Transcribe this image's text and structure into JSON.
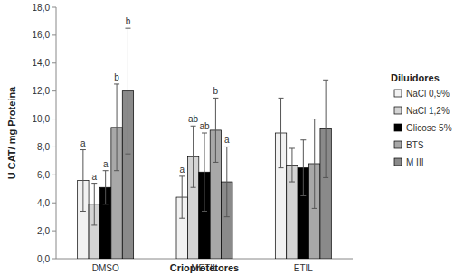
{
  "chart_data": {
    "type": "bar",
    "x_label": "Crioprotetores",
    "y_label": "U CAT/ mg Proteina",
    "legend_title": "Diluidores",
    "legend": "right",
    "grid": false,
    "categories": [
      "DMSO",
      "METIL",
      "ETIL"
    ],
    "ylim": [
      0,
      18
    ],
    "yticks": [
      {
        "value": 0,
        "label": "0,0"
      },
      {
        "value": 2,
        "label": "2,0"
      },
      {
        "value": 4,
        "label": "4,0"
      },
      {
        "value": 6,
        "label": "6,0"
      },
      {
        "value": 8,
        "label": "8,0"
      },
      {
        "value": 10,
        "label": "10,0"
      },
      {
        "value": 12,
        "label": "12,0"
      },
      {
        "value": 14,
        "label": "14,0"
      },
      {
        "value": 16,
        "label": "16,0"
      },
      {
        "value": 18,
        "label": "18,0"
      }
    ],
    "series": [
      {
        "name": "NaCl 0,9%",
        "color": "#f2f2f2",
        "values": [
          5.6,
          4.4,
          9.0
        ],
        "errors": [
          2.2,
          1.5,
          2.5
        ],
        "letters": [
          "a",
          "a",
          null
        ]
      },
      {
        "name": "NaCl 1,2%",
        "color": "#d4d4d4",
        "values": [
          3.9,
          7.3,
          6.7
        ],
        "errors": [
          1.5,
          2.2,
          1.2
        ],
        "letters": [
          "a",
          "ab",
          null
        ]
      },
      {
        "name": "Glicose 5%",
        "color": "#000000",
        "values": [
          5.1,
          6.2,
          6.5
        ],
        "errors": [
          1.2,
          2.8,
          2.0
        ],
        "letters": [
          "a",
          "ab",
          null
        ]
      },
      {
        "name": "BTS",
        "color": "#a8a8a8",
        "values": [
          9.4,
          9.2,
          6.8
        ],
        "errors": [
          3.1,
          2.3,
          3.2
        ],
        "letters": [
          "b",
          "b",
          null
        ]
      },
      {
        "name": "M III",
        "color": "#8a8a8a",
        "values": [
          12.0,
          5.5,
          9.3
        ],
        "errors": [
          4.5,
          2.5,
          3.5
        ],
        "letters": [
          "b",
          "a",
          null
        ]
      }
    ]
  }
}
